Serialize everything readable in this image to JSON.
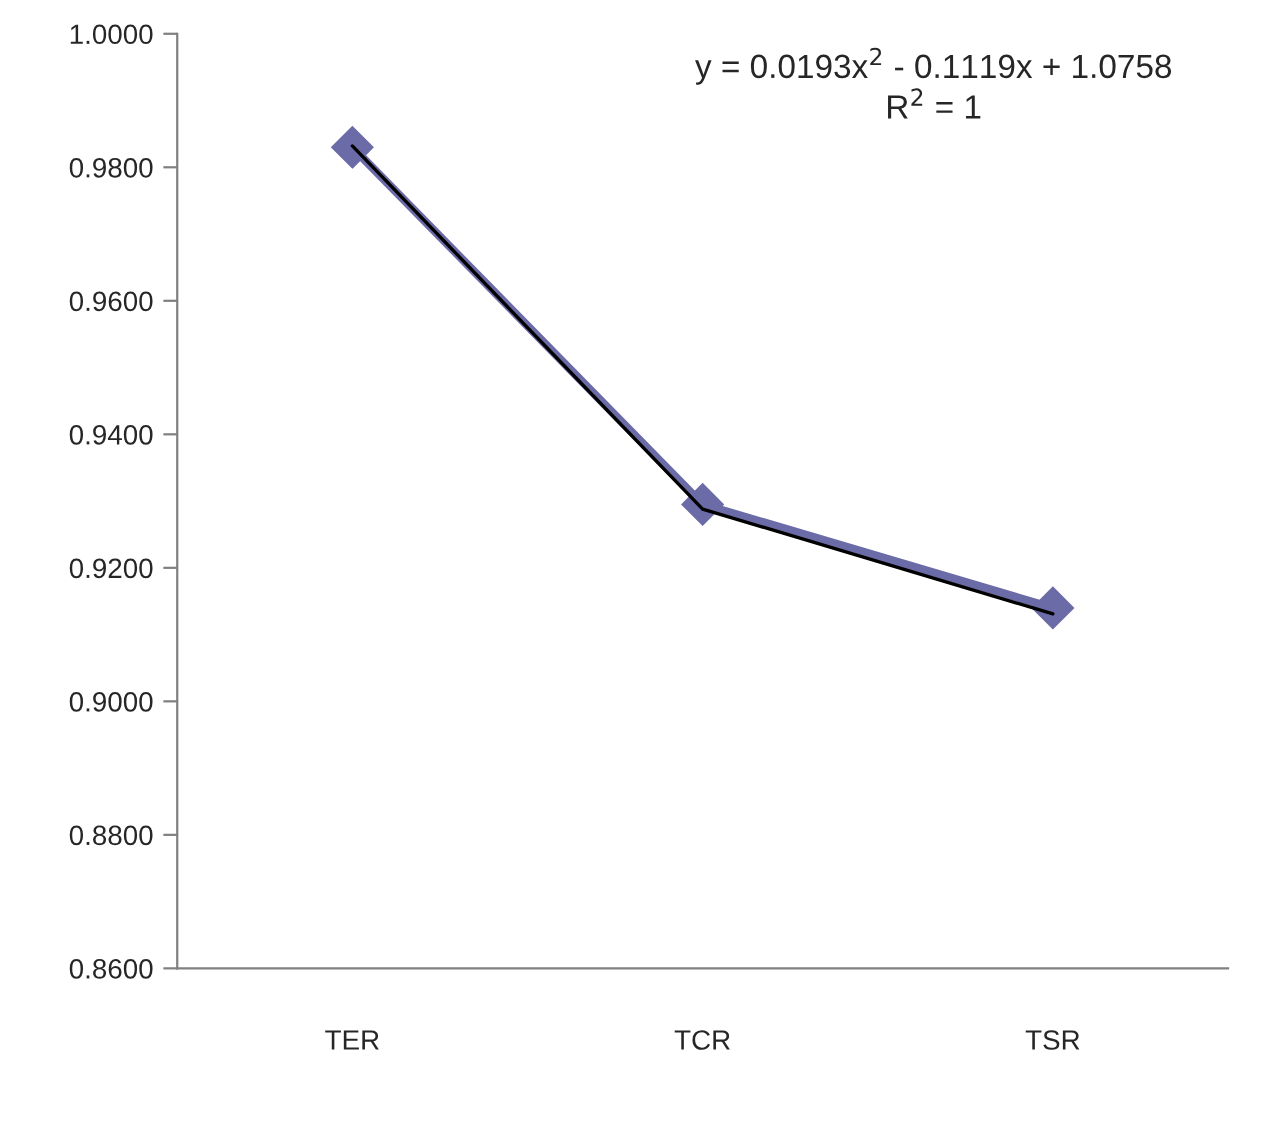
{
  "chart_data": {
    "type": "line",
    "categories": [
      "TER",
      "TCR",
      "TSR"
    ],
    "series": [
      {
        "color": "#6b6ba8",
        "values": [
          0.983,
          0.9295,
          0.914
        ],
        "marker": "diamond"
      },
      {
        "color": "#000000",
        "values": [
          0.9832,
          0.9288,
          0.9131
        ],
        "marker": "none"
      }
    ],
    "ylim": [
      0.86,
      1.0
    ],
    "yticks": [
      {
        "value": 0.86,
        "label": "0.8600"
      },
      {
        "value": 0.88,
        "label": "0.8800"
      },
      {
        "value": 0.9,
        "label": "0.9000"
      },
      {
        "value": 0.92,
        "label": "0.9200"
      },
      {
        "value": 0.94,
        "label": "0.9400"
      },
      {
        "value": 0.96,
        "label": "0.9600"
      },
      {
        "value": 0.98,
        "label": "0.9800"
      },
      {
        "value": 1.0,
        "label": "1.0000"
      }
    ],
    "grid": false,
    "legend": false,
    "annotations": [
      "y = 0.0193x$^{2}$ - 0.1119x + 1.0758",
      "R$^{2}$ = 1"
    ]
  }
}
